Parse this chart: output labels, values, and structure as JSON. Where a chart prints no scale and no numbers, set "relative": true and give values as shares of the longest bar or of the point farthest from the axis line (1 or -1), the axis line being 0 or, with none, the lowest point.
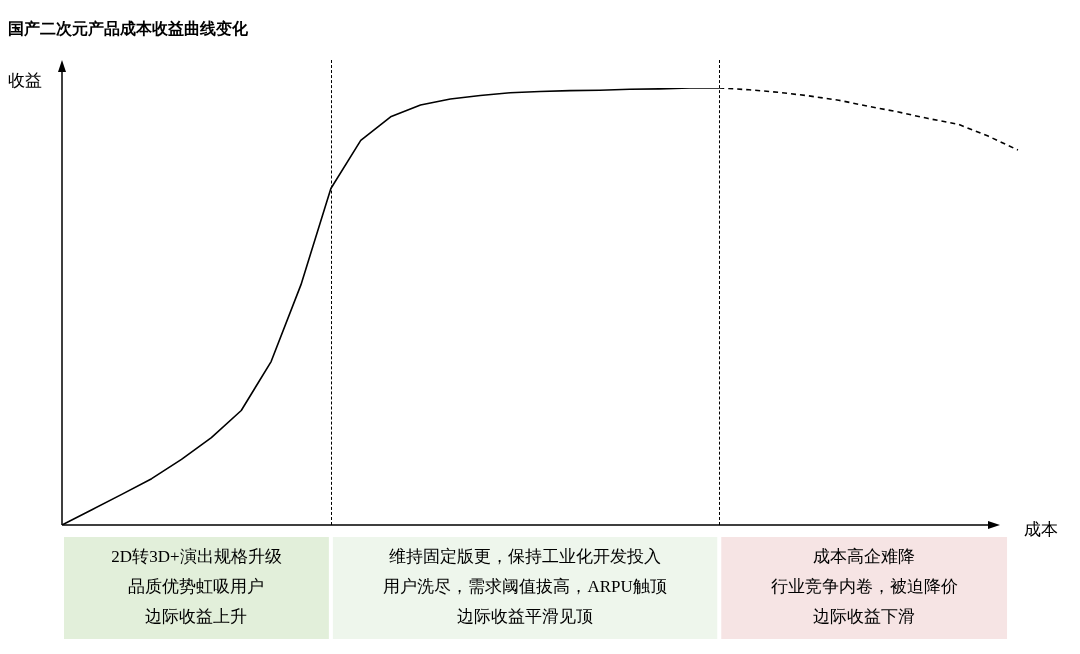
{
  "chart_data": {
    "type": "line",
    "title": "国产二次元产品成本收益曲线变化",
    "xlabel": "成本",
    "ylabel": "收益",
    "relative": true,
    "legend": false,
    "marker": "none",
    "categories": [
      null,
      null,
      null,
      null,
      null,
      null,
      null,
      null,
      null,
      null,
      null,
      null,
      null,
      null,
      null,
      null,
      null,
      null,
      null,
      null,
      null,
      null,
      null,
      null,
      null,
      null,
      null,
      null,
      null,
      null,
      null,
      null,
      null
    ],
    "series": [
      {
        "color": "#000000",
        "line_style": "solid",
        "values": [
          0,
          0.035,
          0.07,
          0.106,
          0.15,
          0.2,
          0.262,
          0.374,
          0.55,
          0.77,
          0.88,
          0.934,
          0.961,
          0.975,
          0.983,
          0.989,
          0.992,
          0.994,
          0.995,
          0.997,
          0.998,
          1,
          1,
          null,
          null,
          null,
          null,
          null,
          null,
          null,
          null,
          null,
          null
        ]
      },
      {
        "color": "#000000",
        "line_style": "dashed",
        "values": [
          null,
          null,
          null,
          null,
          null,
          null,
          null,
          null,
          null,
          null,
          null,
          null,
          null,
          null,
          null,
          null,
          null,
          null,
          null,
          null,
          null,
          null,
          1,
          0.996,
          0.99,
          0.982,
          0.972,
          0.958,
          0.945,
          0.93,
          0.917,
          0.89,
          0.858
        ]
      }
    ],
    "annotations": [
      "2D转3D+演出规格升级",
      "品质优势虹吸用户",
      "边际收益上升",
      "维持固定版更，保持工业化开发投入",
      "用户洗尽，需求阈值拔高，ARPU触顶",
      "边际收益平滑见顶",
      "成本高企难降",
      "行业竞争内卷，被迫降价",
      "边际收益下滑"
    ]
  }
}
